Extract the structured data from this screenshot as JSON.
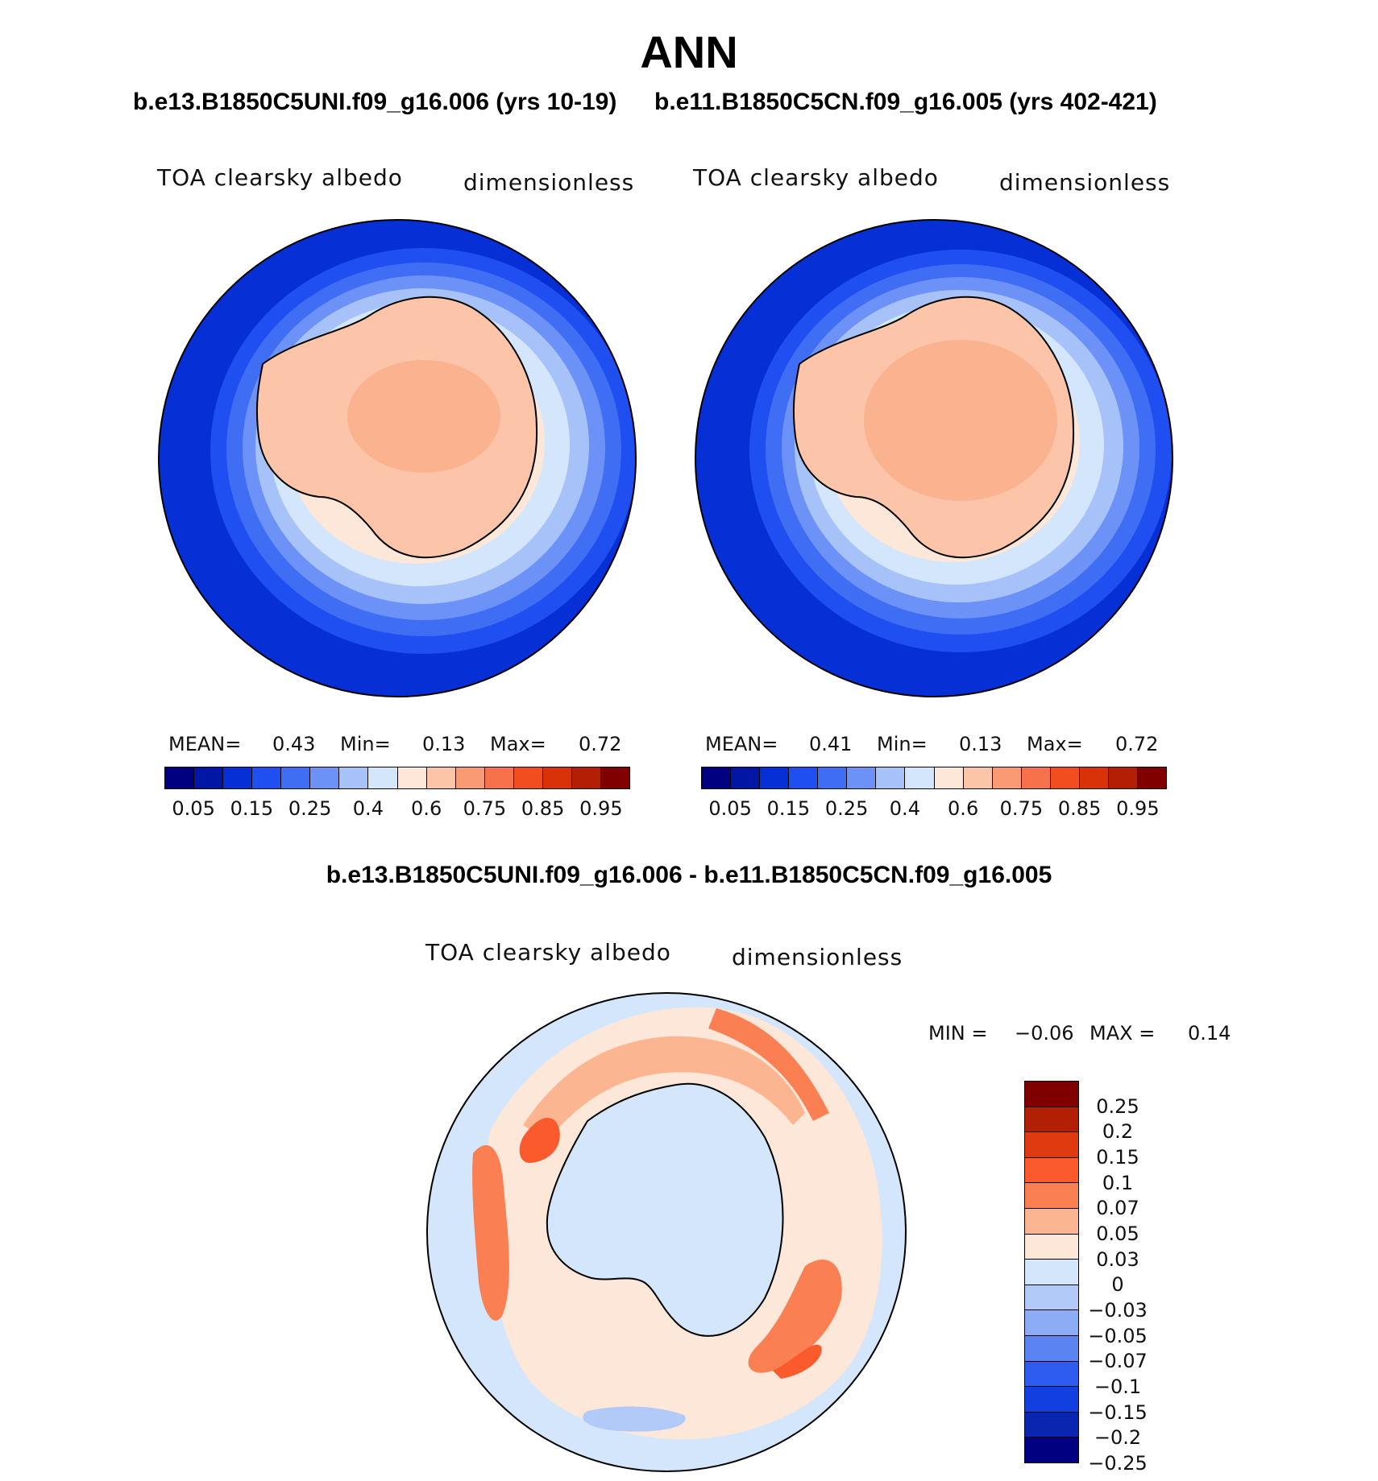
{
  "title": "ANN",
  "panels": [
    {
      "case": "b.e13.B1850C5UNI.f09_g16.006 (yrs 10-19)",
      "variable": "TOA clearsky albedo",
      "units": "dimensionless",
      "stats": {
        "mean_label": "MEAN=",
        "mean": "0.43",
        "min_label": "Min=",
        "min": "0.13",
        "max_label": "Max=",
        "max": "0.72"
      }
    },
    {
      "case": "b.e11.B1850C5CN.f09_g16.005 (yrs 402-421)",
      "variable": "TOA clearsky albedo",
      "units": "dimensionless",
      "stats": {
        "mean_label": "MEAN=",
        "mean": "0.41",
        "min_label": "Min=",
        "min": "0.13",
        "max_label": "Max=",
        "max": "0.72"
      }
    }
  ],
  "abs_colorbar": {
    "colors": [
      "#000080",
      "#0017a6",
      "#0630d6",
      "#1f4ff0",
      "#3f6ef4",
      "#6c92f7",
      "#a6c2f9",
      "#d3e6fb",
      "#fde7d8",
      "#fcc5aa",
      "#fa9a74",
      "#f7724a",
      "#f14d1e",
      "#d93208",
      "#b31f05",
      "#800000"
    ],
    "tick_labels": [
      "0.05",
      "0.15",
      "0.25",
      "0.4",
      "0.6",
      "0.75",
      "0.85",
      "0.95"
    ]
  },
  "difference": {
    "title": "b.e13.B1850C5UNI.f09_g16.006 - b.e11.B1850C5CN.f09_g16.005",
    "variable": "TOA clearsky albedo",
    "units": "dimensionless",
    "stats": {
      "min_label": "MIN =",
      "min": "−0.06",
      "max_label": "MAX =",
      "max": "0.14"
    },
    "colorbar": {
      "colors": [
        "#800000",
        "#b31f05",
        "#e03a10",
        "#fa5a2c",
        "#fa8054",
        "#fcb591",
        "#fde7d8",
        "#d3e6fb",
        "#b2caf8",
        "#8cacf5",
        "#5c83f2",
        "#2f5cf0",
        "#123fe0",
        "#0a25b0",
        "#000080"
      ],
      "labels": [
        "0.25",
        "0.2",
        "0.15",
        "0.1",
        "0.07",
        "0.05",
        "0.03",
        "0",
        "−0.03",
        "−0.05",
        "−0.07",
        "−0.1",
        "−0.15",
        "−0.2",
        "−0.25"
      ]
    }
  }
}
